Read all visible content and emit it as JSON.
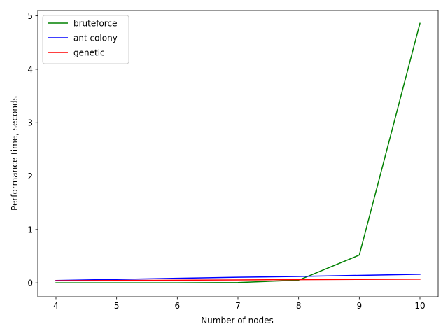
{
  "chart_data": {
    "type": "line",
    "title": "",
    "xlabel": "Number of nodes",
    "ylabel": "Performance time, seconds",
    "x": [
      4,
      5,
      6,
      7,
      8,
      9,
      10
    ],
    "xlim": [
      3.7,
      10.3
    ],
    "ylim": [
      -0.26,
      5.1
    ],
    "xticks": [
      4,
      5,
      6,
      7,
      8,
      9,
      10
    ],
    "yticks": [
      0,
      1,
      2,
      3,
      4,
      5
    ],
    "grid": false,
    "legend_position": "upper-left",
    "series": [
      {
        "name": "bruteforce",
        "color": "#008000",
        "values": [
          0.0,
          0.0,
          0.0,
          0.005,
          0.05,
          0.52,
          4.86
        ]
      },
      {
        "name": "ant colony",
        "color": "#0000ff",
        "values": [
          0.045,
          0.065,
          0.085,
          0.105,
          0.12,
          0.14,
          0.16
        ]
      },
      {
        "name": "genetic",
        "color": "#ff0000",
        "values": [
          0.04,
          0.045,
          0.05,
          0.055,
          0.06,
          0.065,
          0.07
        ]
      }
    ]
  }
}
